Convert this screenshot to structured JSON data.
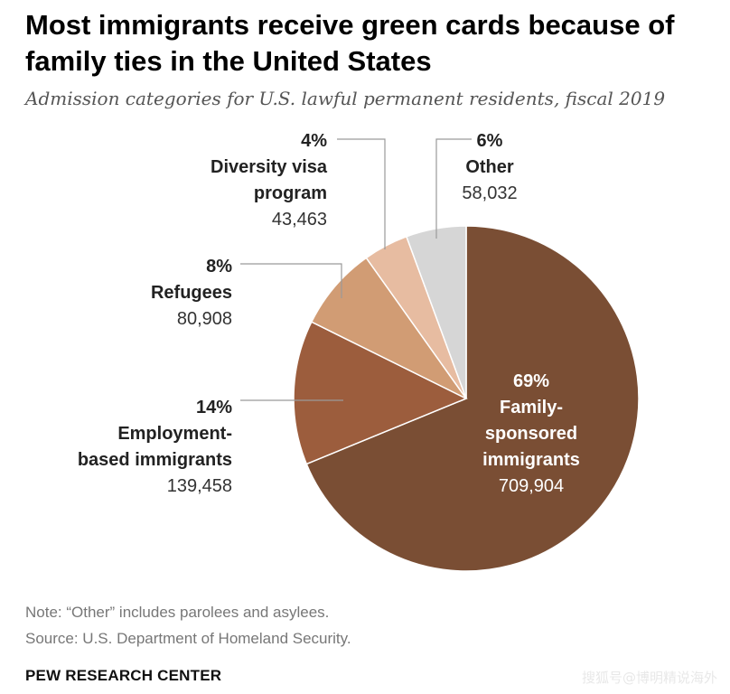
{
  "title": "Most immigrants receive green cards because of family ties in the United States",
  "subtitle": "Admission categories for U.S. lawful permanent residents, fiscal 2019",
  "chart_data": {
    "type": "pie",
    "title": "Most immigrants receive green cards because of family ties in the United States",
    "subtitle": "Admission categories for U.S. lawful permanent residents, fiscal 2019",
    "start_angle_deg": 0,
    "direction": "clockwise",
    "slices": [
      {
        "id": "family",
        "pct": 69,
        "pct_label": "69%",
        "label_lines": [
          "Family-",
          "sponsored",
          "immigrants"
        ],
        "count": 709904,
        "count_label": "709,904",
        "color": "#7a4e34"
      },
      {
        "id": "employment",
        "pct": 14,
        "pct_label": "14%",
        "label_lines": [
          "Employment-",
          "based immigrants"
        ],
        "count": 139458,
        "count_label": "139,458",
        "color": "#9c5d3d"
      },
      {
        "id": "refugees",
        "pct": 8,
        "pct_label": "8%",
        "label_lines": [
          "Refugees"
        ],
        "count": 80908,
        "count_label": "80,908",
        "color": "#d19c74"
      },
      {
        "id": "diversity",
        "pct": 4,
        "pct_label": "4%",
        "label_lines": [
          "Diversity visa",
          "program"
        ],
        "count": 43463,
        "count_label": "43,463",
        "color": "#e7bca1"
      },
      {
        "id": "other",
        "pct": 6,
        "pct_label": "6%",
        "label_lines": [
          "Other"
        ],
        "count": 58032,
        "count_label": "58,032",
        "color": "#d6d6d6"
      }
    ]
  },
  "note": "Note: “Other” includes parolees and asylees.",
  "source": "Source: U.S. Department of Homeland Security.",
  "footer": "PEW RESEARCH CENTER",
  "watermark": "搜狐号@博明精说海外"
}
